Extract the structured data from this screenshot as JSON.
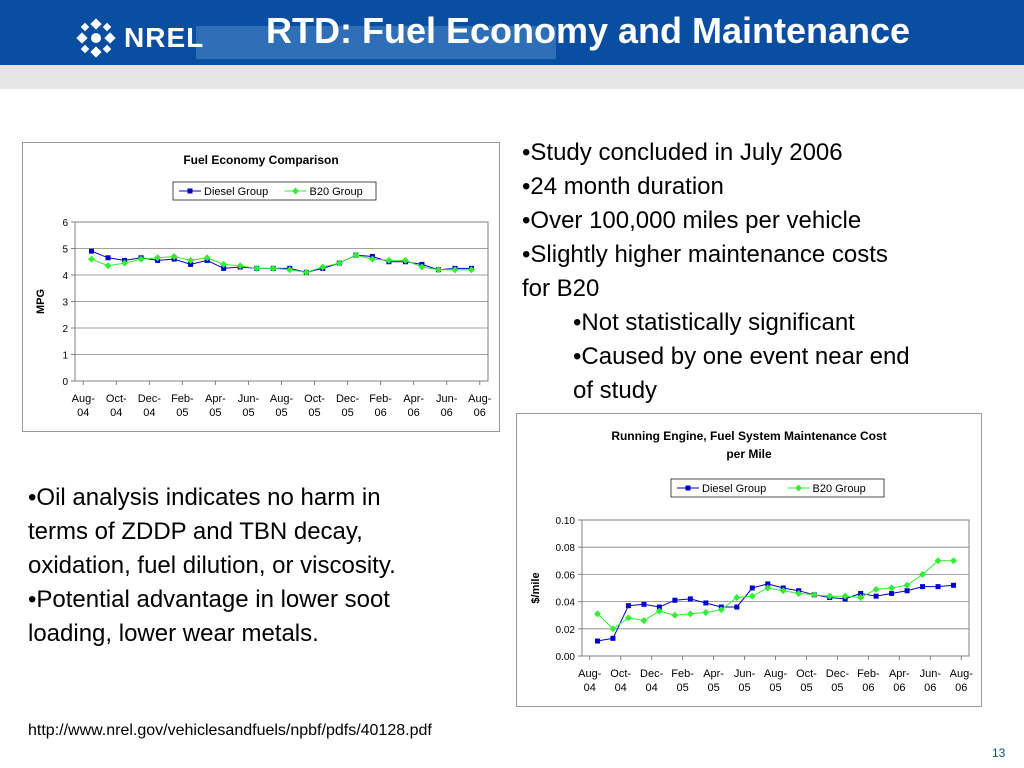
{
  "header": {
    "title": "RTD: Fuel Economy and Maintenance",
    "logo_text": "NREL"
  },
  "bullets_top": [
    "•Study concluded in July 2006",
    "•24 month duration",
    "•Over 100,000 miles per vehicle",
    "•Slightly higher maintenance costs",
    "for B20",
    "•Not statistically significant",
    "•Caused by one event near end",
    "of study"
  ],
  "bullets_left": [
    "•Oil analysis indicates no harm in",
    "terms of ZDDP and TBN decay,",
    "oxidation, fuel dilution, or viscosity.",
    "•Potential advantage in lower soot",
    "loading, lower wear metals."
  ],
  "footer": {
    "url": "http://www.nrel.gov/vehiclesandfuels/npbf/pdfs/40128.pdf",
    "page_number": "13"
  },
  "colors": {
    "diesel": "#0000cc",
    "b20": "#33ee33",
    "header_blue": "#0a4ea2"
  },
  "chart_data": [
    {
      "type": "line",
      "title": "Fuel Economy Comparison",
      "title_lines": [
        "Fuel Economy Comparison"
      ],
      "ylabel": "MPG",
      "ylim": [
        0,
        6
      ],
      "yticks": [
        "0",
        "1",
        "2",
        "3",
        "4",
        "5",
        "6"
      ],
      "xtick_labels": [
        [
          "Aug-",
          "04"
        ],
        [
          "Oct-",
          "04"
        ],
        [
          "Dec-",
          "04"
        ],
        [
          "Feb-",
          "05"
        ],
        [
          "Apr-",
          "05"
        ],
        [
          "Jun-",
          "05"
        ],
        [
          "Aug-",
          "05"
        ],
        [
          "Oct-",
          "05"
        ],
        [
          "Dec-",
          "05"
        ],
        [
          "Feb-",
          "06"
        ],
        [
          "Apr-",
          "06"
        ],
        [
          "Jun-",
          "06"
        ],
        [
          "Aug-",
          "06"
        ]
      ],
      "grid": true,
      "legend": "top",
      "series": [
        {
          "name": "Diesel Group",
          "values": [
            4.9,
            4.65,
            4.55,
            4.65,
            4.55,
            4.6,
            4.4,
            4.55,
            4.25,
            4.3,
            4.25,
            4.25,
            4.25,
            4.1,
            4.25,
            4.45,
            4.75,
            4.7,
            4.5,
            4.5,
            4.4,
            4.2,
            4.25,
            4.25
          ]
        },
        {
          "name": "B20 Group",
          "values": [
            4.6,
            4.35,
            4.45,
            4.6,
            4.65,
            4.7,
            4.55,
            4.65,
            4.4,
            4.35,
            4.25,
            4.25,
            4.2,
            4.1,
            4.3,
            4.45,
            4.75,
            4.6,
            4.55,
            4.55,
            4.3,
            4.2,
            4.2,
            4.2
          ]
        }
      ]
    },
    {
      "type": "line",
      "title": "Running Engine, Fuel System Maintenance Cost per Mile",
      "title_lines": [
        "Running Engine, Fuel System Maintenance Cost",
        "per Mile"
      ],
      "ylabel": "$/mile",
      "ylim": [
        0,
        0.1
      ],
      "yticks": [
        "0.00",
        "0.02",
        "0.04",
        "0.06",
        "0.08",
        "0.10"
      ],
      "xtick_labels": [
        [
          "Aug-",
          "04"
        ],
        [
          "Oct-",
          "04"
        ],
        [
          "Dec-",
          "04"
        ],
        [
          "Feb-",
          "05"
        ],
        [
          "Apr-",
          "05"
        ],
        [
          "Jun-",
          "05"
        ],
        [
          "Aug-",
          "05"
        ],
        [
          "Oct-",
          "05"
        ],
        [
          "Dec-",
          "05"
        ],
        [
          "Feb-",
          "06"
        ],
        [
          "Apr-",
          "06"
        ],
        [
          "Jun-",
          "06"
        ],
        [
          "Aug-",
          "06"
        ]
      ],
      "grid": true,
      "legend": "top",
      "series": [
        {
          "name": "Diesel Group",
          "values": [
            0.011,
            0.013,
            0.037,
            0.038,
            0.036,
            0.041,
            0.042,
            0.039,
            0.036,
            0.036,
            0.05,
            0.053,
            0.05,
            0.048,
            0.045,
            0.043,
            0.042,
            0.046,
            0.044,
            0.046,
            0.048,
            0.051,
            0.051,
            0.052
          ]
        },
        {
          "name": "B20 Group",
          "values": [
            0.031,
            0.02,
            0.028,
            0.026,
            0.033,
            0.03,
            0.031,
            0.032,
            0.034,
            0.043,
            0.044,
            0.05,
            0.048,
            0.046,
            0.045,
            0.044,
            0.044,
            0.043,
            0.049,
            0.05,
            0.052,
            0.06,
            0.07,
            0.07
          ]
        }
      ]
    }
  ]
}
